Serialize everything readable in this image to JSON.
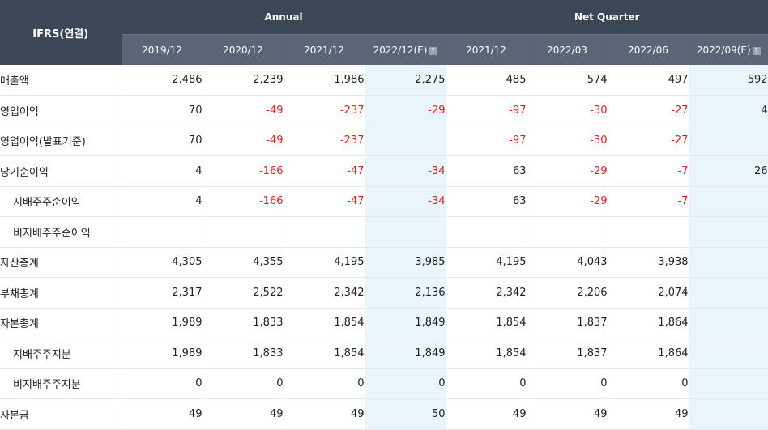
{
  "header": {
    "row_label": "IFRS(연결)",
    "groups": [
      "Annual",
      "Net Quarter"
    ],
    "periods": [
      {
        "label": "2019/12",
        "estimate": false
      },
      {
        "label": "2020/12",
        "estimate": false
      },
      {
        "label": "2021/12",
        "estimate": false
      },
      {
        "label": "2022/12(E)",
        "estimate": true
      },
      {
        "label": "2021/12",
        "estimate": false
      },
      {
        "label": "2022/03",
        "estimate": false
      },
      {
        "label": "2022/06",
        "estimate": false
      },
      {
        "label": "2022/09(E)",
        "estimate": true
      }
    ],
    "estimate_icon": "help-icon",
    "estimate_icon_glyph": "?"
  },
  "colors": {
    "header_dark": "#3b4756",
    "header_sub": "#596678",
    "negative": "#e02020",
    "estimate_bg": "#eaf4fb"
  },
  "rows": [
    {
      "label": "매출액",
      "indent": false,
      "values": [
        "2,486",
        "2,239",
        "1,986",
        "2,275",
        "485",
        "574",
        "497",
        "592"
      ]
    },
    {
      "label": "영업이익",
      "indent": false,
      "values": [
        "70",
        "-49",
        "-237",
        "-29",
        "-97",
        "-30",
        "-27",
        "4"
      ]
    },
    {
      "label": "영업이익(발표기준)",
      "indent": false,
      "values": [
        "70",
        "-49",
        "-237",
        "",
        "-97",
        "-30",
        "-27",
        ""
      ]
    },
    {
      "label": "당기순이익",
      "indent": false,
      "values": [
        "4",
        "-166",
        "-47",
        "-34",
        "63",
        "-29",
        "-7",
        "26"
      ]
    },
    {
      "label": "지배주주순이익",
      "indent": true,
      "values": [
        "4",
        "-166",
        "-47",
        "-34",
        "63",
        "-29",
        "-7",
        ""
      ]
    },
    {
      "label": "비지배주주순이익",
      "indent": true,
      "values": [
        "",
        "",
        "",
        "",
        "",
        "",
        "",
        ""
      ]
    },
    {
      "label": "자산총계",
      "indent": false,
      "values": [
        "4,305",
        "4,355",
        "4,195",
        "3,985",
        "4,195",
        "4,043",
        "3,938",
        ""
      ]
    },
    {
      "label": "부채총계",
      "indent": false,
      "values": [
        "2,317",
        "2,522",
        "2,342",
        "2,136",
        "2,342",
        "2,206",
        "2,074",
        ""
      ]
    },
    {
      "label": "자본총계",
      "indent": false,
      "values": [
        "1,989",
        "1,833",
        "1,854",
        "1,849",
        "1,854",
        "1,837",
        "1,864",
        ""
      ]
    },
    {
      "label": "지배주주지분",
      "indent": true,
      "values": [
        "1,989",
        "1,833",
        "1,854",
        "1,849",
        "1,854",
        "1,837",
        "1,864",
        ""
      ]
    },
    {
      "label": "비지배주주지분",
      "indent": true,
      "values": [
        "0",
        "0",
        "0",
        "0",
        "0",
        "0",
        "0",
        ""
      ]
    },
    {
      "label": "자본금",
      "indent": false,
      "values": [
        "49",
        "49",
        "49",
        "50",
        "49",
        "49",
        "49",
        ""
      ]
    }
  ]
}
